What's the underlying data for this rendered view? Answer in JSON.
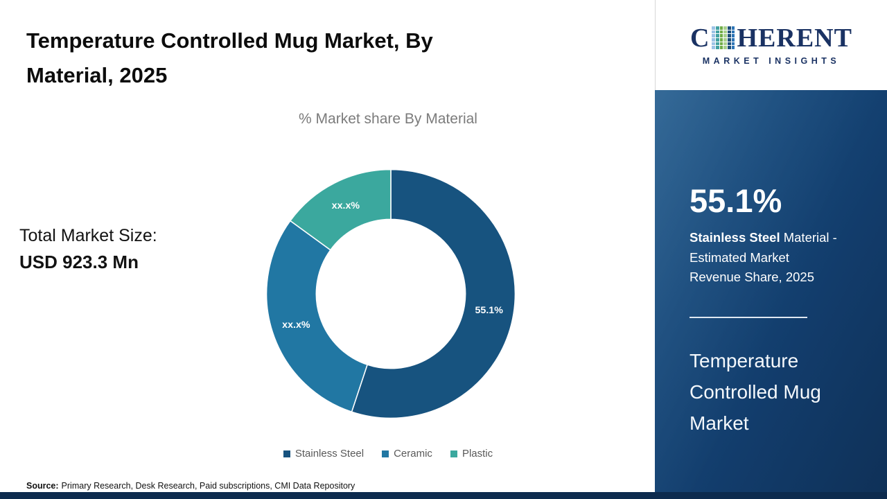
{
  "page": {
    "title_lines": [
      "Temperature Controlled Mug Market, By",
      "Material, 2025"
    ],
    "total_market": {
      "label": "Total Market Size:",
      "value": "USD 923.3 Mn"
    },
    "source": {
      "label": "Source:",
      "text": "Primary Research, Desk Research, Paid subscriptions, CMI Data Repository"
    }
  },
  "chart_data": {
    "type": "pie",
    "variant": "donut",
    "title": "% Market share By Material",
    "categories": [
      "Stainless Steel",
      "Ceramic",
      "Plastic"
    ],
    "values": [
      55.1,
      29.9,
      15.0
    ],
    "display_labels": [
      "55.1%",
      "xx.x%",
      "xx.x%"
    ],
    "colors": [
      "#17537f",
      "#2177a3",
      "#3ba89e"
    ],
    "legend_position": "bottom",
    "inner_radius_ratio": 0.6,
    "start_angle_deg": 0,
    "direction": "clockwise"
  },
  "side_panel": {
    "stat_value": "55.1%",
    "desc_line1_bold": "Stainless Steel",
    "desc_line1_rest": " Material -",
    "desc_line2": "Estimated Market",
    "desc_line3": "Revenue Share, 2025",
    "market_name_lines": [
      "Temperature",
      "Controlled Mug",
      "Market"
    ],
    "panel_color_top": "#1e598c",
    "panel_color_bottom": "#0f3158",
    "bottom_bar_color": "#0d2b4e"
  },
  "logo": {
    "word_prefix": "C",
    "word_suffix": "HERENT",
    "tagline": "MARKET INSIGHTS",
    "mosaic_palette": [
      "#1f4e79",
      "#2e75b6",
      "#9dc3e6",
      "#43a2a2",
      "#70ad47",
      "#a9d18e"
    ]
  }
}
